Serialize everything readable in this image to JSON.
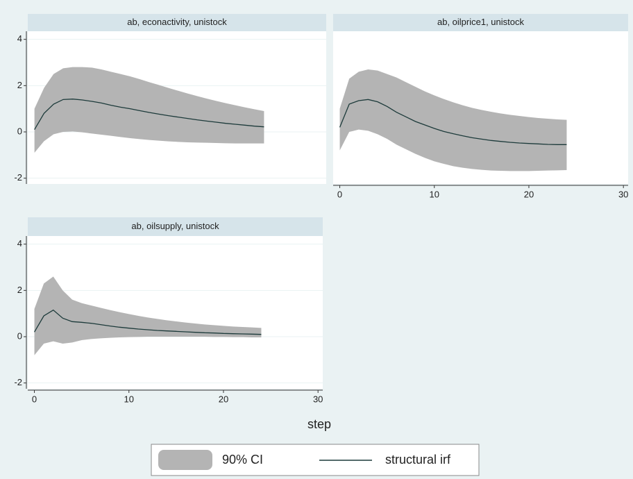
{
  "chart_data": [
    {
      "type": "line",
      "title": "ab, econactivity, unistock",
      "x": [
        0,
        1,
        2,
        3,
        4,
        5,
        6,
        7,
        8,
        9,
        10,
        11,
        12,
        13,
        14,
        15,
        16,
        17,
        18,
        19,
        20,
        21,
        22,
        23,
        24
      ],
      "xlim": [
        -0.7,
        30.5
      ],
      "ylim": [
        -2.25,
        4.35
      ],
      "yticks": [
        -2,
        0,
        2,
        4
      ],
      "grid": true,
      "series": [
        {
          "name": "90% CI",
          "color": "#b4b4b4",
          "upper": [
            1.0,
            1.9,
            2.5,
            2.75,
            2.8,
            2.8,
            2.78,
            2.7,
            2.6,
            2.5,
            2.4,
            2.28,
            2.15,
            2.03,
            1.9,
            1.78,
            1.66,
            1.55,
            1.44,
            1.34,
            1.24,
            1.15,
            1.06,
            0.98,
            0.9
          ],
          "lower": [
            -0.9,
            -0.4,
            -0.1,
            0.0,
            0.02,
            -0.02,
            -0.07,
            -0.12,
            -0.17,
            -0.22,
            -0.27,
            -0.31,
            -0.35,
            -0.38,
            -0.41,
            -0.43,
            -0.45,
            -0.46,
            -0.47,
            -0.48,
            -0.49,
            -0.5,
            -0.5,
            -0.5,
            -0.5
          ]
        },
        {
          "name": "structural irf",
          "color": "#1c3a3a",
          "values": [
            0.1,
            0.8,
            1.2,
            1.4,
            1.42,
            1.38,
            1.32,
            1.25,
            1.15,
            1.07,
            1.0,
            0.92,
            0.84,
            0.77,
            0.7,
            0.64,
            0.58,
            0.52,
            0.47,
            0.42,
            0.37,
            0.33,
            0.29,
            0.25,
            0.22
          ]
        }
      ]
    },
    {
      "type": "line",
      "title": "ab, oilprice1, unistock",
      "x": [
        0,
        1,
        2,
        3,
        4,
        5,
        6,
        7,
        8,
        9,
        10,
        11,
        12,
        13,
        14,
        15,
        16,
        17,
        18,
        19,
        20,
        21,
        22,
        23,
        24
      ],
      "xlim": [
        -0.7,
        30.5
      ],
      "ylim": [
        -2.25,
        4.35
      ],
      "xticks": [
        0,
        10,
        20,
        30
      ],
      "series": [
        {
          "name": "90% CI",
          "color": "#b4b4b4",
          "upper": [
            1.0,
            2.3,
            2.6,
            2.7,
            2.65,
            2.5,
            2.35,
            2.15,
            1.95,
            1.75,
            1.58,
            1.42,
            1.28,
            1.15,
            1.04,
            0.95,
            0.87,
            0.8,
            0.74,
            0.69,
            0.64,
            0.6,
            0.57,
            0.54,
            0.52
          ],
          "lower": [
            -0.8,
            0.0,
            0.1,
            0.05,
            -0.1,
            -0.3,
            -0.55,
            -0.75,
            -0.95,
            -1.12,
            -1.27,
            -1.38,
            -1.48,
            -1.55,
            -1.6,
            -1.64,
            -1.67,
            -1.68,
            -1.69,
            -1.69,
            -1.69,
            -1.68,
            -1.67,
            -1.66,
            -1.65
          ]
        },
        {
          "name": "structural irf",
          "color": "#1c3a3a",
          "values": [
            0.2,
            1.2,
            1.35,
            1.4,
            1.3,
            1.1,
            0.85,
            0.65,
            0.45,
            0.3,
            0.15,
            0.02,
            -0.08,
            -0.17,
            -0.25,
            -0.31,
            -0.37,
            -0.41,
            -0.45,
            -0.48,
            -0.5,
            -0.52,
            -0.54,
            -0.55,
            -0.55
          ]
        }
      ]
    },
    {
      "type": "line",
      "title": "ab, oilsupply, unistock",
      "x": [
        0,
        1,
        2,
        3,
        4,
        5,
        6,
        7,
        8,
        9,
        10,
        11,
        12,
        13,
        14,
        15,
        16,
        17,
        18,
        19,
        20,
        21,
        22,
        23,
        24
      ],
      "xlim": [
        -0.7,
        30.5
      ],
      "ylim": [
        -2.25,
        4.35
      ],
      "xticks": [
        0,
        10,
        20,
        30
      ],
      "yticks": [
        -2,
        0,
        2,
        4
      ],
      "grid": true,
      "series": [
        {
          "name": "90% CI",
          "color": "#b4b4b4",
          "upper": [
            1.2,
            2.3,
            2.6,
            2.0,
            1.6,
            1.45,
            1.35,
            1.25,
            1.15,
            1.06,
            0.98,
            0.9,
            0.83,
            0.77,
            0.71,
            0.66,
            0.61,
            0.57,
            0.53,
            0.5,
            0.47,
            0.44,
            0.42,
            0.4,
            0.38
          ],
          "lower": [
            -0.8,
            -0.3,
            -0.2,
            -0.3,
            -0.25,
            -0.15,
            -0.1,
            -0.07,
            -0.05,
            -0.03,
            -0.02,
            -0.01,
            0,
            0,
            0,
            0,
            0,
            0,
            0,
            -0.01,
            -0.01,
            -0.02,
            -0.02,
            -0.03,
            -0.03
          ]
        },
        {
          "name": "structural irf",
          "color": "#1c3a3a",
          "values": [
            0.2,
            0.9,
            1.15,
            0.8,
            0.65,
            0.62,
            0.58,
            0.52,
            0.46,
            0.41,
            0.37,
            0.33,
            0.3,
            0.27,
            0.25,
            0.23,
            0.21,
            0.19,
            0.17,
            0.16,
            0.14,
            0.13,
            0.12,
            0.11,
            0.1
          ]
        }
      ]
    }
  ],
  "xlabel": "step"
}
